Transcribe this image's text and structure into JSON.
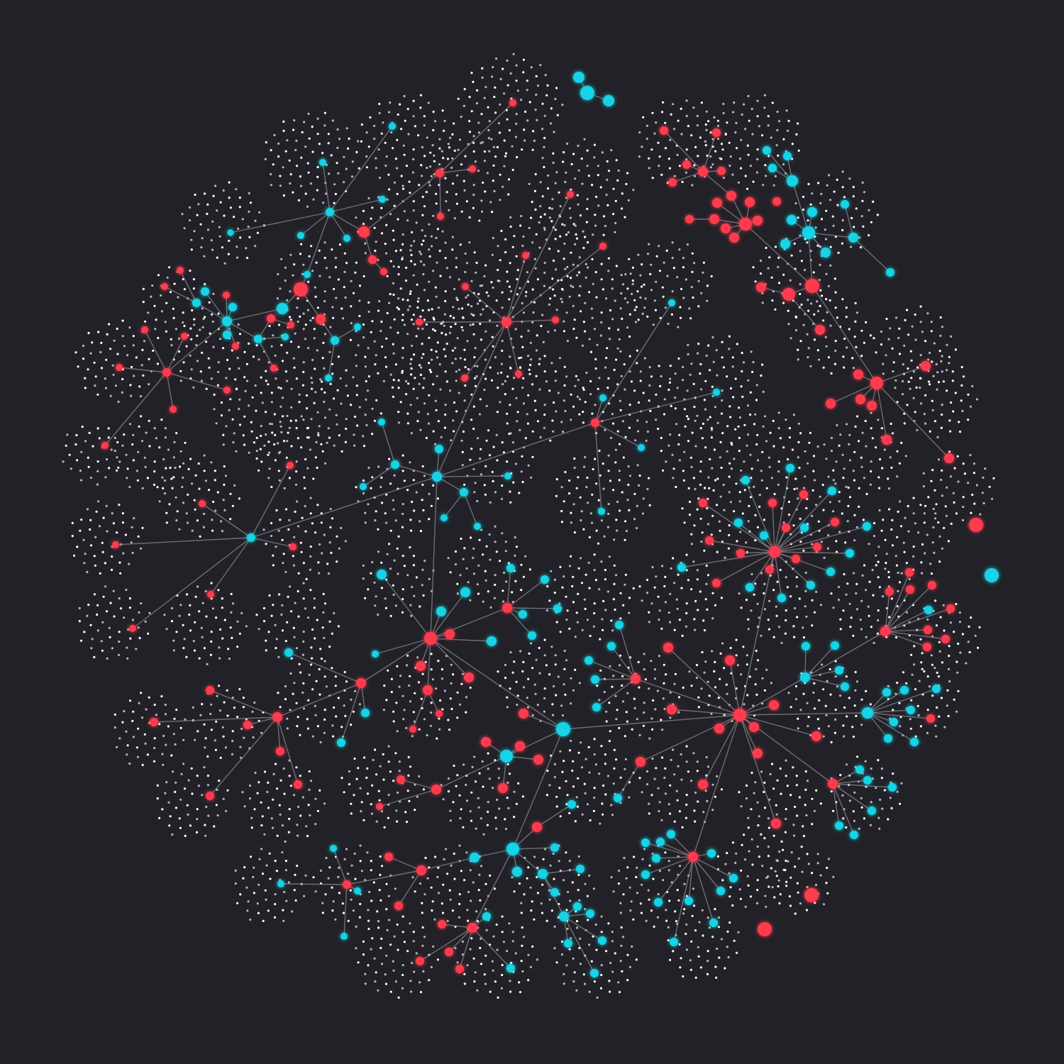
{
  "colors": {
    "background": "#222127",
    "edge": "#8a8790",
    "dot_light": "#ffffff",
    "dot_dim": "#b9b6bd",
    "node_red": "#ff3b4e",
    "node_cyan": "#14d3e6"
  },
  "node_types": [
    "red",
    "cyan"
  ]
}
